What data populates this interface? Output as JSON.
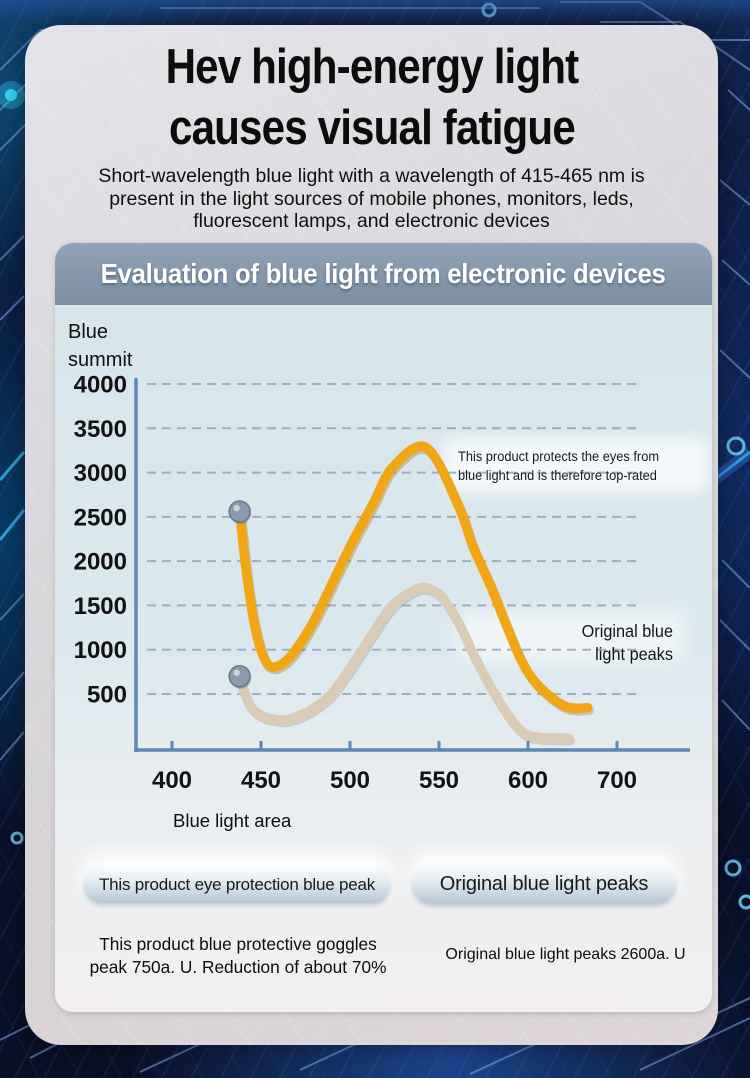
{
  "header": {
    "title": "Hev high-energy light\ncauses visual fatigue",
    "subtitle": "Short-wavelength blue light with a wavelength of 415-465 nm is\npresent in the light sources of mobile phones, monitors, leds,\nfluorescent lamps, and electronic devices"
  },
  "panel": {
    "banner": "Evaluation of blue light from electronic devices",
    "banner_color": "#8496ab",
    "body_color": "#d9e7ed"
  },
  "chart_data": {
    "type": "line",
    "title": "Evaluation of blue light from electronic devices",
    "xlabel": "Blue light area",
    "ylabel": "Blue\nsummit",
    "x_ticks": [
      400,
      450,
      500,
      550,
      600,
      700
    ],
    "y_ticks": [
      4000,
      3500,
      3000,
      2500,
      2000,
      1500,
      1000,
      500
    ],
    "ylim": [
      0,
      4000
    ],
    "grid": "horizontal-dashed",
    "axis_color": "#5d87b7",
    "grid_color": "#93a6c0",
    "series": [
      {
        "name": "Original blue light peaks",
        "color": "#f0a615",
        "shadow_color": "#8a6200",
        "marker_color": "#8b9bae",
        "peak_value": 3280,
        "points": [
          [
            438,
            2560
          ],
          [
            441,
            2010
          ],
          [
            444,
            1560
          ],
          [
            447,
            1220
          ],
          [
            451,
            940
          ],
          [
            455,
            815
          ],
          [
            461,
            830
          ],
          [
            468,
            960
          ],
          [
            479,
            1300
          ],
          [
            490,
            1750
          ],
          [
            501,
            2200
          ],
          [
            513,
            2650
          ],
          [
            524,
            3060
          ],
          [
            543,
            3280
          ],
          [
            561,
            2620
          ],
          [
            569,
            2170
          ],
          [
            579,
            1720
          ],
          [
            588,
            1270
          ],
          [
            597,
            850
          ],
          [
            613,
            580
          ],
          [
            642,
            360
          ],
          [
            667,
            345
          ]
        ]
      },
      {
        "name": "This product eye protection blue peak",
        "color": "#d9cbb6",
        "shadow_color": "#9a8a72",
        "marker_color": "#8b9bae",
        "peak_value": 1700,
        "points": [
          [
            438,
            700
          ],
          [
            441,
            490
          ],
          [
            445,
            340
          ],
          [
            451,
            250
          ],
          [
            458,
            215
          ],
          [
            466,
            215
          ],
          [
            478,
            320
          ],
          [
            489,
            490
          ],
          [
            500,
            790
          ],
          [
            511,
            1130
          ],
          [
            523,
            1480
          ],
          [
            534,
            1650
          ],
          [
            542,
            1700
          ],
          [
            551,
            1610
          ],
          [
            561,
            1300
          ],
          [
            569,
            960
          ],
          [
            579,
            580
          ],
          [
            588,
            285
          ],
          [
            597,
            70
          ],
          [
            613,
            10
          ],
          [
            646,
            0
          ]
        ]
      }
    ],
    "annotations": [
      {
        "text": "This product protects the eyes from\nblue light and is therefore top-rated",
        "x": 562,
        "y": 3250
      },
      {
        "text": "Original blue\nlight peaks",
        "x": 700,
        "y": 1100
      }
    ]
  },
  "footnotes": {
    "product": "This product blue protective goggles\npeak 750a. U. Reduction of about 70%",
    "original": "Original blue light peaks 2600a. U"
  }
}
